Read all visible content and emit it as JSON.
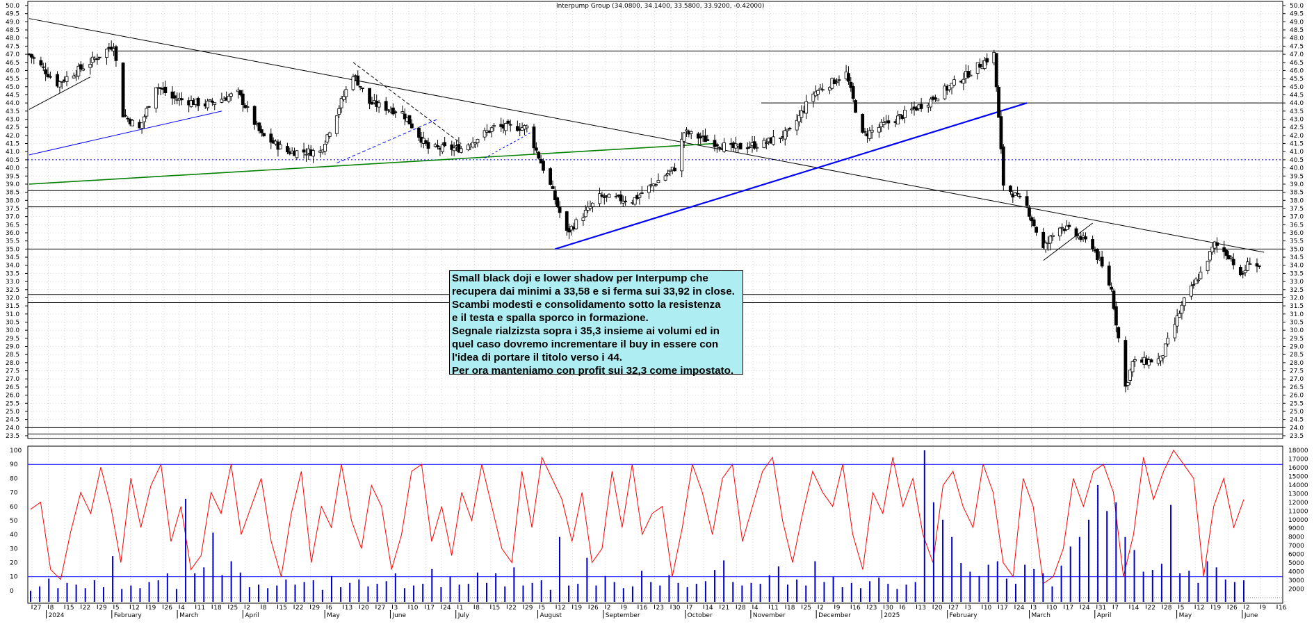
{
  "title": "Interpump Group (34.0800, 34.1400, 33.5800, 33.9200, -0.42000)",
  "note": {
    "lines": [
      "Small black doji e lower shadow per Interpump che",
      "recupera dai minimi a 33,58 e si ferma sui 33,92 in close.",
      "Scambi modesti e consolidamento sotto la resistenza",
      "e il testa e spalla sporco in formazione.",
      "Segnale rialzizsta sopra i 35,3 insieme ai volumi ed in",
      "quel caso dovremo incrementare il buy in essere con",
      "l'idea di portare il titolo verso i 44.",
      "Per ora manteniamo con profit sui 32,3 come impostato."
    ]
  },
  "colors": {
    "background": "#ffffff",
    "candle": "#000000",
    "trendline_black": "#000000",
    "trendline_blue": "#0000ff",
    "trendline_green": "#008000",
    "oscillator": "#ff0000",
    "volume": "#0000cc",
    "note_background": "#aeeef2",
    "grid": "#c8c8c8"
  },
  "chart_data": [
    {
      "type": "candlestick",
      "title": "Interpump Group (34.0800, 34.1400, 33.5800, 33.9200, -0.42000)",
      "last_bar": {
        "open": 34.08,
        "high": 34.14,
        "low": 33.58,
        "close": 33.92,
        "change": -0.42
      },
      "y_ticks": [
        "23.5",
        "24.0",
        "24.5",
        "25.0",
        "25.5",
        "26.0",
        "26.5",
        "27.0",
        "27.5",
        "28.0",
        "28.5",
        "29.0",
        "29.5",
        "30.0",
        "30.5",
        "31.0",
        "31.5",
        "32.0",
        "32.5",
        "33.0",
        "33.5",
        "34.0",
        "34.5",
        "35.0",
        "35.5",
        "36.0",
        "36.5",
        "37.0",
        "37.5",
        "38.0",
        "38.5",
        "39.0",
        "39.5",
        "40.0",
        "40.5",
        "41.0",
        "41.5",
        "42.0",
        "42.5",
        "43.0",
        "43.5",
        "44.0",
        "44.5",
        "45.0",
        "45.5",
        "46.0",
        "46.5",
        "47.0",
        "47.5",
        "48.0",
        "48.5",
        "49.0",
        "49.5",
        "50.0"
      ],
      "ylim": [
        23.5,
        50.0
      ],
      "x_day_ticks": [
        "27",
        "8",
        "15",
        "22",
        "29",
        "5",
        "12",
        "19",
        "26",
        "4",
        "11",
        "18",
        "25",
        "2",
        "8",
        "15",
        "22",
        "29",
        "6",
        "13",
        "20",
        "27",
        "3",
        "10",
        "17",
        "24",
        "1",
        "8",
        "15",
        "22",
        "29",
        "5",
        "12",
        "19",
        "26",
        "2",
        "9",
        "16",
        "23",
        "30",
        "7",
        "14",
        "21",
        "28",
        "4",
        "11",
        "18",
        "25",
        "2",
        "9",
        "16",
        "23",
        "30",
        "6",
        "13",
        "20",
        "27",
        "3",
        "10",
        "17",
        "24",
        "3",
        "10",
        "17",
        "24",
        "31",
        "7",
        "14",
        "22",
        "28",
        "5",
        "12",
        "19",
        "26",
        "2",
        "9",
        "16"
      ],
      "x_month_labels": [
        "2024",
        "February",
        "March",
        "April",
        "May",
        "June",
        "July",
        "August",
        "September",
        "October",
        "November",
        "December",
        "2025",
        "February",
        "March",
        "April",
        "May",
        "June"
      ],
      "close_series": [
        {
          "date": "2023-12-27",
          "close": 47.0
        },
        {
          "date": "2024-01-08",
          "close": 45.2
        },
        {
          "date": "2024-01-22",
          "close": 46.5
        },
        {
          "date": "2024-02-01",
          "close": 47.6
        },
        {
          "date": "2024-02-05",
          "close": 43.3
        },
        {
          "date": "2024-02-12",
          "close": 42.4
        },
        {
          "date": "2024-02-19",
          "close": 45.1
        },
        {
          "date": "2024-02-26",
          "close": 44.3
        },
        {
          "date": "2024-03-11",
          "close": 43.9
        },
        {
          "date": "2024-03-25",
          "close": 44.6
        },
        {
          "date": "2024-04-04",
          "close": 42.0
        },
        {
          "date": "2024-04-15",
          "close": 41.0
        },
        {
          "date": "2024-04-29",
          "close": 41.0
        },
        {
          "date": "2024-05-13",
          "close": 45.8
        },
        {
          "date": "2024-05-20",
          "close": 44.0
        },
        {
          "date": "2024-06-03",
          "close": 43.4
        },
        {
          "date": "2024-06-14",
          "close": 41.2
        },
        {
          "date": "2024-06-28",
          "close": 41.2
        },
        {
          "date": "2024-07-12",
          "close": 42.5
        },
        {
          "date": "2024-07-26",
          "close": 42.5
        },
        {
          "date": "2024-08-05",
          "close": 38.9
        },
        {
          "date": "2024-08-12",
          "close": 36.0
        },
        {
          "date": "2024-08-26",
          "close": 38.2
        },
        {
          "date": "2024-09-09",
          "close": 38.0
        },
        {
          "date": "2024-09-27",
          "close": 40.0
        },
        {
          "date": "2024-10-01",
          "close": 42.2
        },
        {
          "date": "2024-10-21",
          "close": 41.2
        },
        {
          "date": "2024-11-04",
          "close": 41.5
        },
        {
          "date": "2024-11-15",
          "close": 42.2
        },
        {
          "date": "2024-11-25",
          "close": 44.6
        },
        {
          "date": "2024-12-09",
          "close": 45.8
        },
        {
          "date": "2024-12-16",
          "close": 42.0
        },
        {
          "date": "2024-12-30",
          "close": 43.0
        },
        {
          "date": "2025-01-13",
          "close": 44.1
        },
        {
          "date": "2025-01-27",
          "close": 45.5
        },
        {
          "date": "2025-02-10",
          "close": 47.0
        },
        {
          "date": "2025-02-14",
          "close": 39.0
        },
        {
          "date": "2025-02-24",
          "close": 37.6
        },
        {
          "date": "2025-03-03",
          "close": 35.0
        },
        {
          "date": "2025-03-10",
          "close": 36.5
        },
        {
          "date": "2025-03-24",
          "close": 35.2
        },
        {
          "date": "2025-04-01",
          "close": 32.5
        },
        {
          "date": "2025-04-07",
          "close": 26.5
        },
        {
          "date": "2025-04-10",
          "close": 28.0
        },
        {
          "date": "2025-04-22",
          "close": 28.2
        },
        {
          "date": "2025-05-02",
          "close": 31.8
        },
        {
          "date": "2025-05-09",
          "close": 33.5
        },
        {
          "date": "2025-05-15",
          "close": 35.3
        },
        {
          "date": "2025-05-22",
          "close": 34.5
        },
        {
          "date": "2025-05-26",
          "close": 33.2
        },
        {
          "date": "2025-05-30",
          "close": 34.3
        },
        {
          "date": "2025-06-03",
          "close": 33.92
        }
      ],
      "horizontal_levels": [
        47.2,
        44.0,
        40.5,
        38.6,
        37.6,
        35.0,
        32.2,
        31.7,
        24.0,
        23.6
      ]
    },
    {
      "type": "line",
      "panel": "oscillator",
      "y_ticks": [
        "0",
        "10",
        "20",
        "30",
        "40",
        "50",
        "60",
        "70",
        "80",
        "90",
        "100"
      ],
      "ylim": [
        -5,
        100
      ],
      "levels": [
        10,
        90
      ],
      "values": [
        58,
        63,
        15,
        8,
        42,
        70,
        55,
        88,
        60,
        20,
        80,
        45,
        75,
        90,
        35,
        60,
        15,
        25,
        70,
        55,
        90,
        40,
        60,
        80,
        35,
        10,
        55,
        85,
        20,
        60,
        45,
        90,
        50,
        30,
        75,
        60,
        15,
        40,
        85,
        90,
        35,
        60,
        25,
        70,
        50,
        90,
        60,
        30,
        20,
        85,
        45,
        95,
        80,
        65,
        35,
        70,
        20,
        30,
        85,
        45,
        90,
        40,
        55,
        60,
        10,
        45,
        90,
        70,
        40,
        80,
        90,
        35,
        60,
        85,
        95,
        50,
        20,
        55,
        85,
        70,
        60,
        90,
        40,
        15,
        70,
        55,
        95,
        60,
        80,
        40,
        20,
        75,
        85,
        60,
        45,
        90,
        70,
        20,
        10,
        80,
        60,
        5,
        10,
        30,
        80,
        60,
        85,
        90,
        70,
        10,
        40,
        95,
        65,
        85,
        100,
        90,
        80,
        10,
        60,
        80,
        45,
        65
      ]
    },
    {
      "type": "bar",
      "panel": "volume",
      "y_ticks": [
        "2000",
        "3000",
        "4000",
        "5000",
        "6000",
        "7000",
        "8000",
        "9000",
        "10000",
        "11000",
        "12000",
        "13000",
        "14000",
        "15000",
        "16000",
        "17000",
        "18000"
      ],
      "ylim": [
        1000,
        18000
      ],
      "values": [
        1800,
        2300,
        3200,
        2100,
        2700,
        2500,
        2100,
        3000,
        2200,
        5800,
        2000,
        2400,
        2100,
        2800,
        3000,
        3800,
        2000,
        12400,
        3800,
        4500,
        8500,
        3600,
        5200,
        3900,
        2200,
        2500,
        2100,
        2400,
        3100,
        2500,
        2800,
        3000,
        1900,
        3500,
        2200,
        2700,
        3100,
        2300,
        2600,
        2900,
        3800,
        2100,
        2400,
        2600,
        4300,
        2200,
        3400,
        2500,
        2600,
        3900,
        2700,
        3800,
        2300,
        4500,
        2400,
        2700,
        3000,
        1900,
        8000,
        2400,
        2600,
        5600,
        2400,
        3500,
        2800,
        2100,
        2300,
        4100,
        2800,
        2400,
        3600,
        2700,
        2200,
        2600,
        2900,
        4200,
        5300,
        2800,
        2400,
        2700,
        2600,
        3600,
        4600,
        2500,
        3100,
        2400,
        5200,
        2800,
        3400,
        2200,
        2700,
        2100,
        2900,
        3300,
        2600,
        2000,
        2500,
        2800,
        18000,
        12000,
        10000,
        8000,
        5000,
        4000,
        3500,
        4800,
        5200,
        3200,
        2600,
        4800,
        4300,
        3800,
        2300,
        4700,
        6900,
        8000,
        10000,
        14000,
        11000,
        12000,
        8000,
        6500,
        4000,
        4200,
        4900,
        11700,
        3800,
        4100,
        2700,
        5200,
        4500,
        3100,
        2800,
        3000
      ]
    }
  ]
}
